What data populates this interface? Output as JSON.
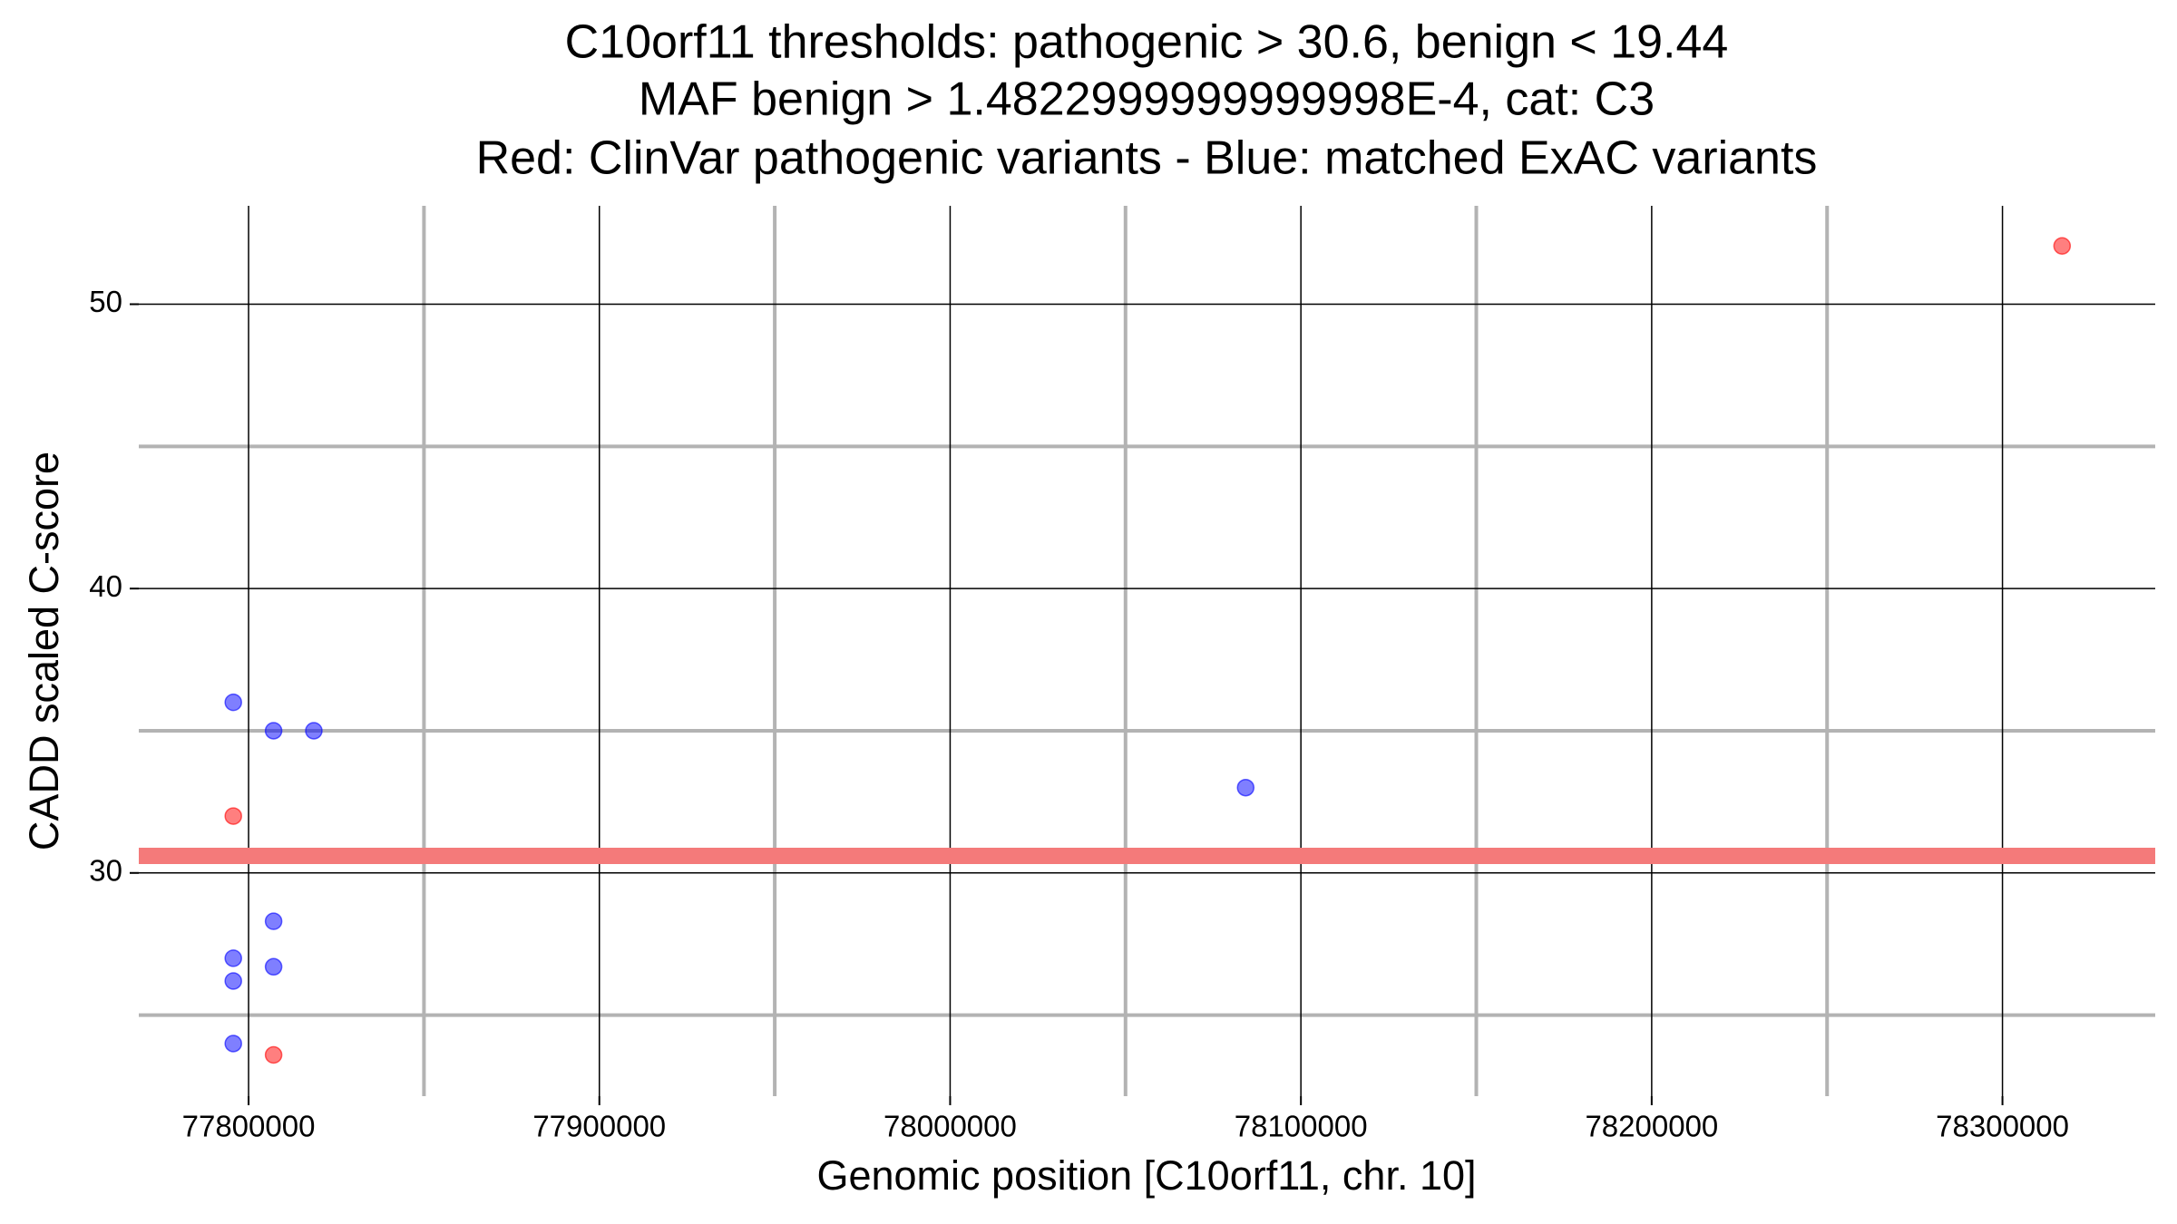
{
  "chart_data": {
    "type": "scatter",
    "title": [
      "C10orf11 thresholds: pathogenic > 30.6, benign < 19.44",
      "MAF benign > 1.4822999999999998E-4, cat: C3",
      "Red: ClinVar pathogenic variants - Blue: matched ExAC variants"
    ],
    "x_label": "Genomic position [C10orf11, chr. 10]",
    "y_label": "CADD scaled C-score",
    "xlim": [
      77768700,
      78343550
    ],
    "ylim": [
      22.15,
      53.46
    ],
    "xticks": [
      77800000,
      77900000,
      78000000,
      78100000,
      78200000,
      78300000
    ],
    "yticks": [
      30,
      40,
      50
    ],
    "x_minor_ticks": [
      77850000,
      77950000,
      78050000,
      78150000,
      78250000
    ],
    "y_minor_ticks": [
      25,
      35,
      45
    ],
    "grid": true,
    "hlines": [
      {
        "value": 30.6,
        "color": "#f47a7a"
      }
    ],
    "series": [
      {
        "name": "ClinVar pathogenic variants",
        "color": "#ff0000",
        "x": [
          77795650,
          77807130,
          78317000
        ],
        "values": [
          32,
          23.6,
          52.05
        ]
      },
      {
        "name": "matched ExAC variants",
        "color": "#0000ff",
        "x": [
          77795650,
          77807130,
          77818600,
          78084250,
          77807130,
          77795650,
          77807130,
          77795650,
          77795650
        ],
        "values": [
          36,
          35,
          35,
          33,
          28.3,
          27,
          26.7,
          26.2,
          24
        ]
      }
    ]
  }
}
